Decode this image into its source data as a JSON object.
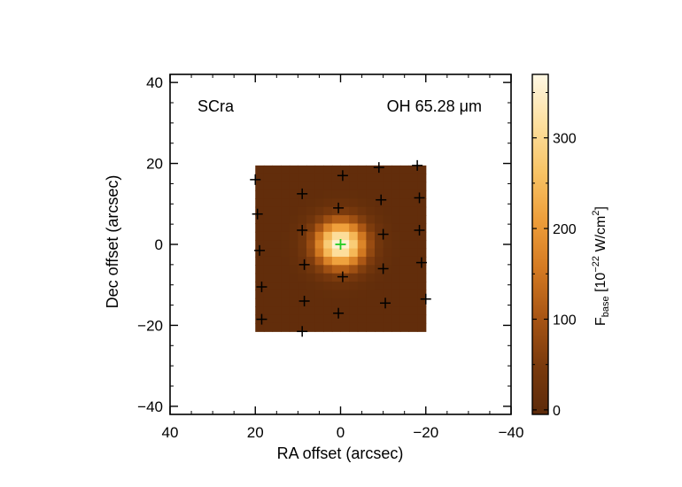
{
  "chart_data": {
    "type": "heatmap",
    "title": "",
    "annotations": {
      "object": "SCra",
      "line": "OH 65.28 μm"
    },
    "xlabel": "RA offset (arcsec)",
    "ylabel": "Dec offset (arcsec)",
    "xlim": [
      40,
      -40
    ],
    "ylim": [
      -42,
      42
    ],
    "xticks": [
      40,
      20,
      0,
      -20,
      -40
    ],
    "xtick_labels": [
      "40",
      "20",
      "0",
      "−20",
      "−40"
    ],
    "yticks": [
      40,
      20,
      0,
      -20,
      -40
    ],
    "ytick_labels": [
      "40",
      "20",
      "0",
      "−20",
      "−40"
    ],
    "map_extent": {
      "x": [
        20,
        -20
      ],
      "y": [
        -21.5,
        19.5
      ]
    },
    "map_grid": {
      "nx": 20,
      "ny": 20
    },
    "source": {
      "ra": 0,
      "dec": 0,
      "peak": 360,
      "fwhm_arcsec": 9.5,
      "background": 5,
      "marker_color": "#22cc22"
    },
    "spaxels": [
      [
        20.0,
        16.0
      ],
      [
        9.0,
        12.5
      ],
      [
        -0.5,
        17.0
      ],
      [
        -9.0,
        19.0
      ],
      [
        -18.0,
        19.5
      ],
      [
        19.5,
        7.5
      ],
      [
        0.5,
        9.0
      ],
      [
        -9.5,
        11.0
      ],
      [
        -18.5,
        11.5
      ],
      [
        19.0,
        -1.5
      ],
      [
        9.0,
        3.5
      ],
      [
        -10.0,
        2.5
      ],
      [
        -18.5,
        3.5
      ],
      [
        18.5,
        -10.5
      ],
      [
        8.5,
        -5.0
      ],
      [
        -0.5,
        -8.0
      ],
      [
        -10.0,
        -6.0
      ],
      [
        -19.0,
        -4.5
      ],
      [
        18.5,
        -18.5
      ],
      [
        8.5,
        -14.0
      ],
      [
        0.5,
        -17.0
      ],
      [
        -10.5,
        -14.5
      ],
      [
        -20.0,
        -13.5
      ],
      [
        9.0,
        -21.5
      ]
    ],
    "colorbar": {
      "label_main": "F",
      "label_sub": "base",
      "label_rest": " [10",
      "label_exp": "−22",
      "label_units": " W/cm",
      "label_units_exp": "2",
      "label_close": "]",
      "range": [
        -5,
        370
      ],
      "ticks": [
        0,
        100,
        200,
        300
      ],
      "tick_labels": [
        "0",
        "100",
        "200",
        "300"
      ],
      "colormap": [
        "#5c2a0a",
        "#7a3a0d",
        "#a85514",
        "#d47a22",
        "#ee9e3a",
        "#f8c466",
        "#fde0a0",
        "#fff8e4"
      ]
    }
  }
}
